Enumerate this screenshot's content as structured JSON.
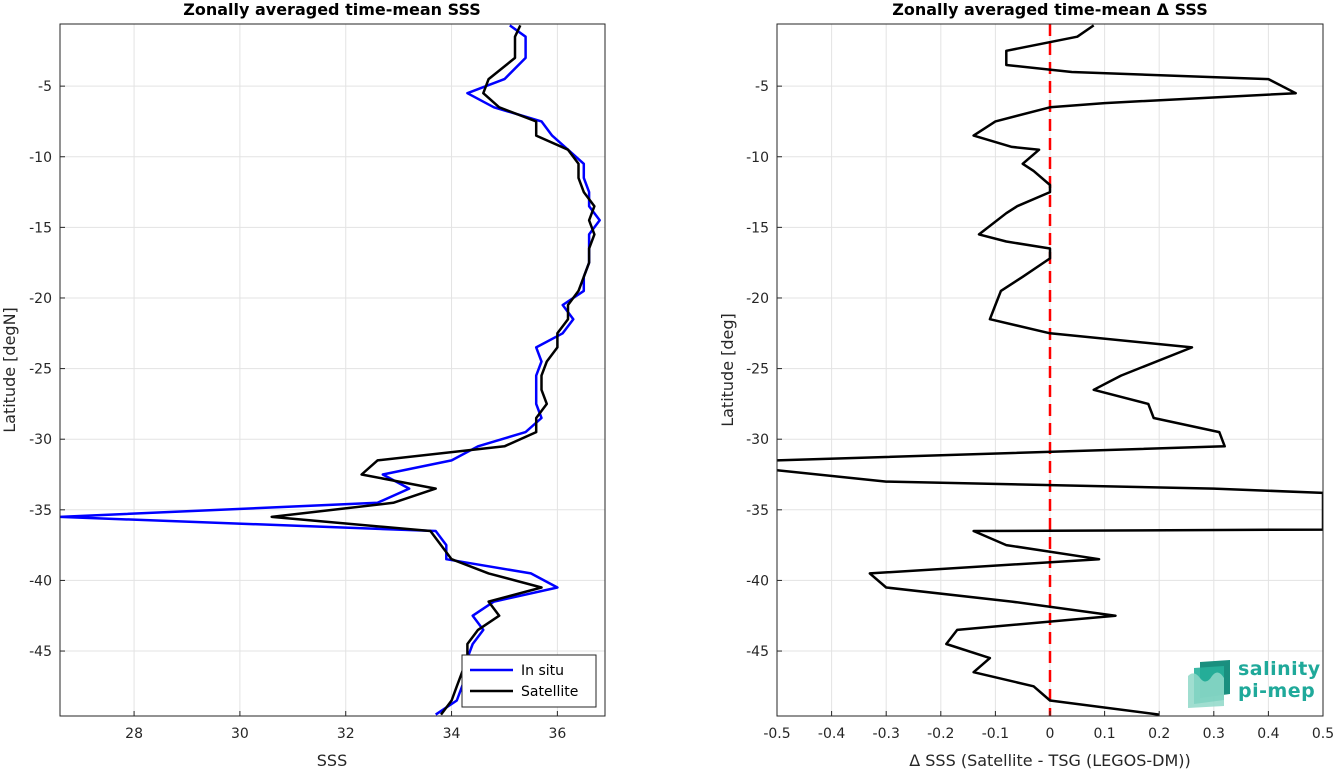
{
  "colors": {
    "in_situ": "#0000ff",
    "satellite": "#000000",
    "zero_line": "#ff0000",
    "logo": "#1fa99a"
  },
  "logo": {
    "line1": "salinity",
    "line2": "pi-mep"
  },
  "chart_data": [
    {
      "type": "line",
      "title": "Zonally averaged time-mean SSS",
      "xlabel": "SSS",
      "ylabel": "Latitude [degN]",
      "xlim": [
        26.6,
        36.9
      ],
      "ylim": [
        -49.6,
        -0.6
      ],
      "xticks": [
        28,
        30,
        32,
        34,
        36
      ],
      "yticks": [
        -5,
        -10,
        -15,
        -20,
        -25,
        -30,
        -35,
        -40,
        -45
      ],
      "grid": true,
      "legend": {
        "placement": "bottom-right",
        "entries": [
          "In situ",
          "Satellite"
        ]
      },
      "series": [
        {
          "name": "In situ",
          "color": "#0000ff",
          "points": [
            [
              35.1,
              -0.7
            ],
            [
              35.4,
              -1.5
            ],
            [
              35.4,
              -3.0
            ],
            [
              35.0,
              -4.5
            ],
            [
              34.3,
              -5.5
            ],
            [
              34.8,
              -6.5
            ],
            [
              35.7,
              -7.5
            ],
            [
              35.9,
              -8.5
            ],
            [
              36.2,
              -9.5
            ],
            [
              36.5,
              -10.5
            ],
            [
              36.5,
              -11.5
            ],
            [
              36.6,
              -12.5
            ],
            [
              36.6,
              -13.5
            ],
            [
              36.8,
              -14.5
            ],
            [
              36.6,
              -15.5
            ],
            [
              36.6,
              -16.5
            ],
            [
              36.6,
              -17.5
            ],
            [
              36.5,
              -18.5
            ],
            [
              36.5,
              -19.5
            ],
            [
              36.1,
              -20.5
            ],
            [
              36.3,
              -21.5
            ],
            [
              36.1,
              -22.5
            ],
            [
              35.6,
              -23.5
            ],
            [
              35.7,
              -24.5
            ],
            [
              35.6,
              -25.5
            ],
            [
              35.6,
              -26.5
            ],
            [
              35.6,
              -27.5
            ],
            [
              35.7,
              -28.5
            ],
            [
              35.4,
              -29.5
            ],
            [
              34.5,
              -30.5
            ],
            [
              34.0,
              -31.5
            ],
            [
              32.7,
              -32.5
            ],
            [
              33.2,
              -33.5
            ],
            [
              32.6,
              -34.5
            ],
            [
              26.6,
              -35.5
            ],
            [
              33.7,
              -36.5
            ],
            [
              33.9,
              -37.5
            ],
            [
              33.9,
              -38.5
            ],
            [
              35.5,
              -39.5
            ],
            [
              36.0,
              -40.5
            ],
            [
              34.8,
              -41.5
            ],
            [
              34.4,
              -42.5
            ],
            [
              34.6,
              -43.5
            ],
            [
              34.4,
              -44.5
            ],
            [
              34.3,
              -45.5
            ],
            [
              34.3,
              -46.5
            ],
            [
              34.2,
              -47.5
            ],
            [
              34.1,
              -48.5
            ],
            [
              33.7,
              -49.5
            ]
          ]
        },
        {
          "name": "Satellite",
          "color": "#000000",
          "points": [
            [
              35.3,
              -0.7
            ],
            [
              35.2,
              -1.5
            ],
            [
              35.2,
              -3.0
            ],
            [
              34.7,
              -4.5
            ],
            [
              34.6,
              -5.5
            ],
            [
              34.9,
              -6.5
            ],
            [
              35.6,
              -7.5
            ],
            [
              35.6,
              -8.5
            ],
            [
              36.2,
              -9.5
            ],
            [
              36.4,
              -10.5
            ],
            [
              36.4,
              -11.5
            ],
            [
              36.5,
              -12.5
            ],
            [
              36.7,
              -13.5
            ],
            [
              36.6,
              -14.5
            ],
            [
              36.7,
              -15.5
            ],
            [
              36.6,
              -16.5
            ],
            [
              36.6,
              -17.5
            ],
            [
              36.5,
              -18.5
            ],
            [
              36.4,
              -19.5
            ],
            [
              36.2,
              -20.5
            ],
            [
              36.2,
              -21.5
            ],
            [
              36.0,
              -22.5
            ],
            [
              36.0,
              -23.5
            ],
            [
              35.8,
              -24.5
            ],
            [
              35.7,
              -25.5
            ],
            [
              35.7,
              -26.5
            ],
            [
              35.8,
              -27.5
            ],
            [
              35.6,
              -28.5
            ],
            [
              35.6,
              -29.5
            ],
            [
              35.0,
              -30.5
            ],
            [
              32.6,
              -31.5
            ],
            [
              32.3,
              -32.5
            ],
            [
              33.7,
              -33.5
            ],
            [
              32.9,
              -34.5
            ],
            [
              30.6,
              -35.5
            ],
            [
              33.6,
              -36.5
            ],
            [
              33.8,
              -37.5
            ],
            [
              34.0,
              -38.5
            ],
            [
              34.7,
              -39.5
            ],
            [
              35.7,
              -40.5
            ],
            [
              34.7,
              -41.5
            ],
            [
              34.9,
              -42.5
            ],
            [
              34.5,
              -43.5
            ],
            [
              34.3,
              -44.5
            ],
            [
              34.3,
              -45.5
            ],
            [
              34.2,
              -46.5
            ],
            [
              34.1,
              -47.5
            ],
            [
              34.0,
              -48.5
            ],
            [
              33.8,
              -49.5
            ]
          ]
        }
      ]
    },
    {
      "type": "line",
      "title": "Zonally averaged time-mean Δ SSS",
      "xlabel": "Δ SSS (Satellite - TSG (LEGOS-DM))",
      "ylabel": "Latitude [deg]",
      "xlim": [
        -0.5,
        0.5
      ],
      "ylim": [
        -49.6,
        -0.6
      ],
      "xticks": [
        -0.5,
        -0.4,
        -0.3,
        -0.2,
        -0.1,
        0,
        0.1,
        0.2,
        0.3,
        0.4,
        0.5
      ],
      "xtick_labels": [
        "-0.5",
        "-0.4",
        "-0.3",
        "-0.2",
        "-0.1",
        "0",
        "0.1",
        "0.2",
        "0.3",
        "0.4",
        "0.5"
      ],
      "yticks": [
        -5,
        -10,
        -15,
        -20,
        -25,
        -30,
        -35,
        -40,
        -45
      ],
      "grid": true,
      "reference_line": {
        "x": 0,
        "style": "dashed",
        "color": "#ff0000"
      },
      "series": [
        {
          "name": "Satellite - TSG",
          "color": "#000000",
          "points": [
            [
              0.08,
              -0.7
            ],
            [
              0.05,
              -1.5
            ],
            [
              -0.08,
              -2.5
            ],
            [
              -0.08,
              -3.5
            ],
            [
              0.04,
              -4.0
            ],
            [
              0.4,
              -4.5
            ],
            [
              0.45,
              -5.5
            ],
            [
              0.1,
              -6.2
            ],
            [
              0.0,
              -6.5
            ],
            [
              -0.1,
              -7.5
            ],
            [
              -0.14,
              -8.5
            ],
            [
              -0.07,
              -9.3
            ],
            [
              -0.02,
              -9.5
            ],
            [
              -0.05,
              -10.5
            ],
            [
              -0.03,
              -11.0
            ],
            [
              0.0,
              -12.0
            ],
            [
              0.0,
              -12.5
            ],
            [
              -0.06,
              -13.5
            ],
            [
              -0.08,
              -14.0
            ],
            [
              -0.13,
              -15.5
            ],
            [
              -0.08,
              -16.0
            ],
            [
              0.0,
              -16.5
            ],
            [
              0.0,
              -17.2
            ],
            [
              -0.05,
              -18.5
            ],
            [
              -0.09,
              -19.5
            ],
            [
              -0.1,
              -20.5
            ],
            [
              -0.11,
              -21.5
            ],
            [
              0.0,
              -22.5
            ],
            [
              0.26,
              -23.5
            ],
            [
              0.13,
              -25.5
            ],
            [
              0.08,
              -26.5
            ],
            [
              0.18,
              -27.5
            ],
            [
              0.19,
              -28.5
            ],
            [
              0.31,
              -29.5
            ],
            [
              0.32,
              -30.5
            ],
            [
              -0.5,
              -31.5
            ],
            [
              -0.55,
              -32.0
            ],
            [
              -0.3,
              -33.0
            ],
            [
              0.3,
              -33.5
            ],
            [
              0.5,
              -33.8
            ],
            [
              0.5,
              -36.4
            ],
            [
              -0.14,
              -36.5
            ],
            [
              -0.08,
              -37.5
            ],
            [
              0.09,
              -38.5
            ],
            [
              -0.33,
              -39.5
            ],
            [
              -0.3,
              -40.5
            ],
            [
              -0.07,
              -41.5
            ],
            [
              0.12,
              -42.5
            ],
            [
              -0.17,
              -43.5
            ],
            [
              -0.19,
              -44.5
            ],
            [
              -0.11,
              -45.5
            ],
            [
              -0.14,
              -46.5
            ],
            [
              -0.03,
              -47.5
            ],
            [
              0.0,
              -48.5
            ],
            [
              0.2,
              -49.5
            ]
          ]
        }
      ]
    }
  ]
}
